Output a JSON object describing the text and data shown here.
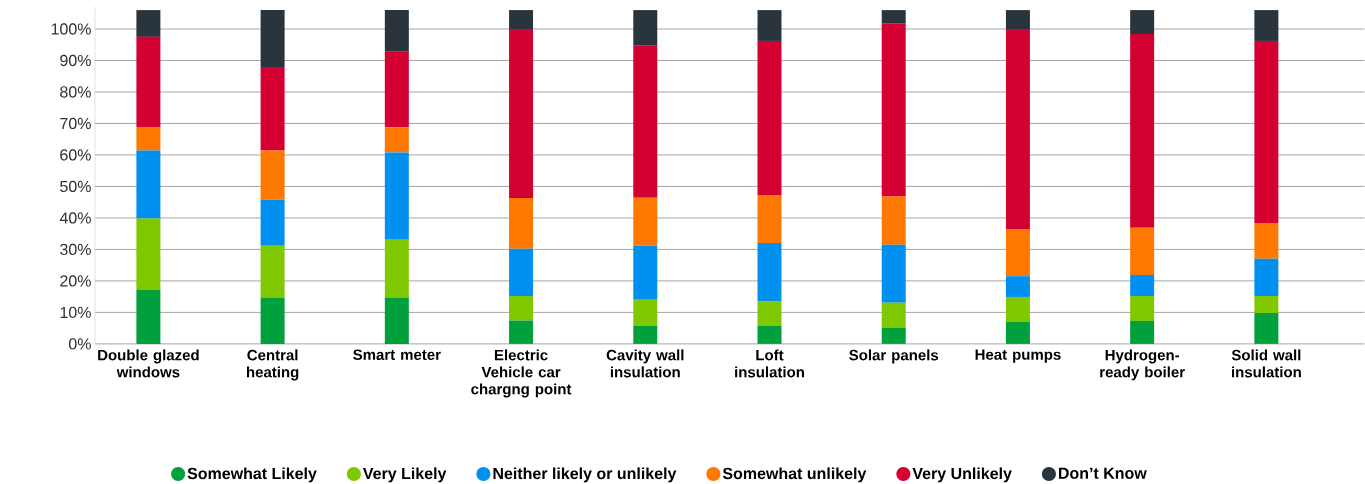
{
  "chart_data": {
    "type": "bar",
    "stacked": true,
    "categories": [
      "Double glazed windows",
      "Central heating",
      "Smart meter",
      "Electric Vehicle car chargng point",
      "Cavity wall insulation",
      "Loft insulation",
      "Solar panels",
      "Heat pumps",
      "Hydrogen-ready boiler",
      "Solid wall insulation"
    ],
    "series": [
      {
        "name": "Somewhat Likely",
        "color": "#00a03c",
        "values": [
          17.1,
          14.7,
          14.7,
          7.4,
          5.7,
          5.7,
          5.1,
          7.0,
          7.3,
          9.8
        ]
      },
      {
        "name": "Very Likely",
        "color": "#80c800",
        "values": [
          22.7,
          16.5,
          18.4,
          7.8,
          8.3,
          7.9,
          8.0,
          7.9,
          7.9,
          5.4
        ]
      },
      {
        "name": "Neither likely or unlikely",
        "color": "#0091f0",
        "values": [
          21.6,
          14.6,
          27.7,
          15.0,
          17.2,
          18.4,
          18.4,
          6.6,
          6.7,
          11.8
        ]
      },
      {
        "name": "Somewhat unlikely",
        "color": "#ff7800",
        "values": [
          7.5,
          15.6,
          8.0,
          16.1,
          15.2,
          15.3,
          15.3,
          15.0,
          15.0,
          11.4
        ]
      },
      {
        "name": "Very Unlikely",
        "color": "#d50032",
        "values": [
          28.6,
          26.5,
          24.0,
          53.7,
          48.4,
          48.9,
          55.0,
          63.5,
          61.5,
          57.8
        ]
      },
      {
        "name": "Don’t Know",
        "color": "#2a343d",
        "values": [
          8.5,
          18.1,
          13.2,
          6.0,
          11.2,
          9.8,
          4.2,
          6.0,
          7.6,
          9.8
        ]
      }
    ],
    "ylim": [
      0,
      107
    ],
    "yticks": [
      {
        "value": 0,
        "label": "0%"
      },
      {
        "value": 10,
        "label": "10%"
      },
      {
        "value": 20,
        "label": "20%"
      },
      {
        "value": 30,
        "label": "30%"
      },
      {
        "value": 40,
        "label": "40%"
      },
      {
        "value": 50,
        "label": "50%"
      },
      {
        "value": 60,
        "label": "60%"
      },
      {
        "value": 70,
        "label": "70%"
      },
      {
        "value": 80,
        "label": "80%"
      },
      {
        "value": 90,
        "label": "90%"
      },
      {
        "value": 100,
        "label": "100%"
      }
    ],
    "grid": "y",
    "legend": "bottom"
  }
}
